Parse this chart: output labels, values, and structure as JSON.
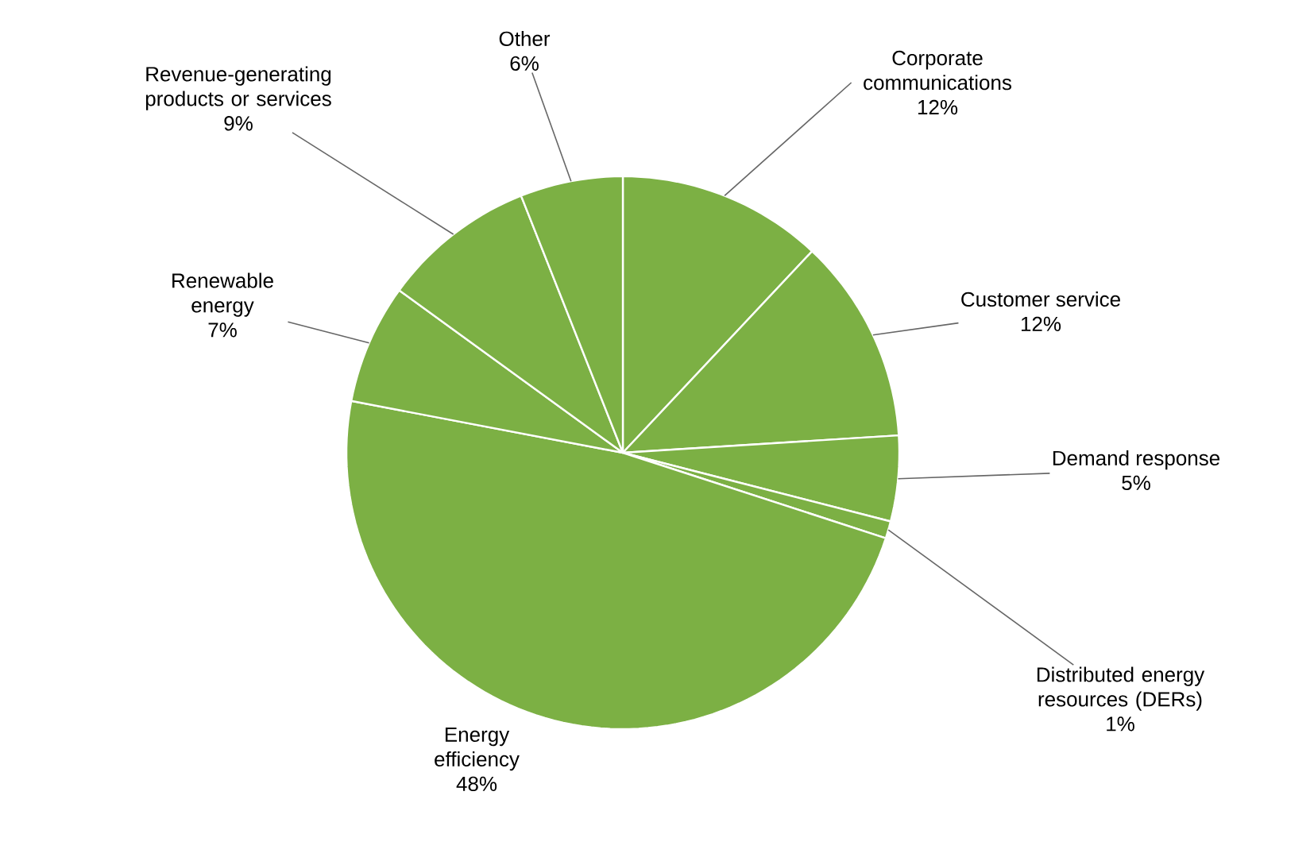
{
  "chart_data": {
    "type": "pie",
    "categories": [
      "Corporate communications",
      "Customer service",
      "Demand response",
      "Distributed energy resources (DERs)",
      "Energy efficiency",
      "Renewable energy",
      "Revenue-generating products or services",
      "Other"
    ],
    "values": [
      12,
      12,
      5,
      1,
      48,
      7,
      9,
      6
    ],
    "value_labels": [
      "12%",
      "12%",
      "5%",
      "1%",
      "48%",
      "7%",
      "9%",
      "6%"
    ],
    "colors": [
      "#7cb044",
      "#7cb044",
      "#7cb044",
      "#7cb044",
      "#7cb044",
      "#7cb044",
      "#7cb044",
      "#7cb044"
    ]
  }
}
